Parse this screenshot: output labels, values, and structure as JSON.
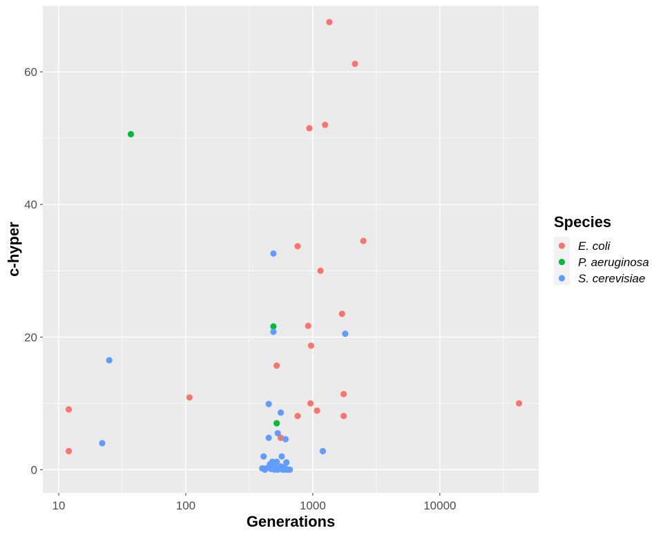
{
  "chart_data": {
    "type": "scatter",
    "title": "",
    "xlabel": "Generations",
    "ylabel": "c-hyper",
    "x_scale": "log10",
    "xlim": [
      7.5,
      60000
    ],
    "ylim": [
      -3.5,
      70
    ],
    "x_ticks": [
      10,
      100,
      1000,
      10000
    ],
    "x_tick_labels": [
      "10",
      "100",
      "1000",
      "10000"
    ],
    "y_ticks": [
      0,
      20,
      40,
      60
    ],
    "y_tick_labels": [
      "0",
      "20",
      "40",
      "60"
    ],
    "grid": true,
    "panel_background": "#ebebeb",
    "grid_color": "#ffffff",
    "legend": {
      "title": "Species",
      "placement": "right",
      "entries": [
        "E. coli",
        "P. aeruginosa",
        "S. cerevisiae"
      ]
    },
    "series": [
      {
        "name": "E. coli",
        "color": "#f8766d",
        "points": [
          [
            1350,
            67.5
          ],
          [
            2150,
            61.2
          ],
          [
            1250,
            52.0
          ],
          [
            940,
            51.5
          ],
          [
            2500,
            34.5
          ],
          [
            760,
            33.7
          ],
          [
            1150,
            30.0
          ],
          [
            1700,
            23.5
          ],
          [
            920,
            21.7
          ],
          [
            970,
            18.7
          ],
          [
            520,
            15.7
          ],
          [
            1750,
            11.4
          ],
          [
            107,
            10.9
          ],
          [
            42000,
            10.0
          ],
          [
            960,
            10.0
          ],
          [
            1080,
            8.9
          ],
          [
            12,
            9.1
          ],
          [
            760,
            8.1
          ],
          [
            1750,
            8.1
          ],
          [
            560,
            4.8
          ],
          [
            12,
            2.8
          ]
        ]
      },
      {
        "name": "P. aeruginosa",
        "color": "#00ba38",
        "points": [
          [
            37,
            50.6
          ],
          [
            490,
            21.6
          ],
          [
            520,
            7.0
          ]
        ]
      },
      {
        "name": "S. cerevisiae",
        "color": "#619cff",
        "points": [
          [
            490,
            32.6
          ],
          [
            490,
            20.8
          ],
          [
            1800,
            20.5
          ],
          [
            25,
            16.5
          ],
          [
            450,
            9.9
          ],
          [
            560,
            8.6
          ],
          [
            530,
            5.5
          ],
          [
            450,
            4.8
          ],
          [
            610,
            4.6
          ],
          [
            22,
            4.0
          ],
          [
            1200,
            2.8
          ],
          [
            410,
            2.0
          ],
          [
            570,
            2.0
          ],
          [
            480,
            1.2
          ],
          [
            520,
            1.2
          ],
          [
            620,
            1.1
          ],
          [
            460,
            0.8
          ],
          [
            500,
            0.6
          ],
          [
            560,
            0.5
          ],
          [
            600,
            0.4
          ],
          [
            400,
            0.2
          ],
          [
            430,
            0.2
          ],
          [
            470,
            0.1
          ],
          [
            500,
            0.0
          ],
          [
            530,
            0.0
          ],
          [
            580,
            0.0
          ],
          [
            610,
            0.0
          ],
          [
            640,
            0.0
          ],
          [
            660,
            0.0
          ],
          [
            420,
            0.0
          ]
        ]
      }
    ]
  }
}
